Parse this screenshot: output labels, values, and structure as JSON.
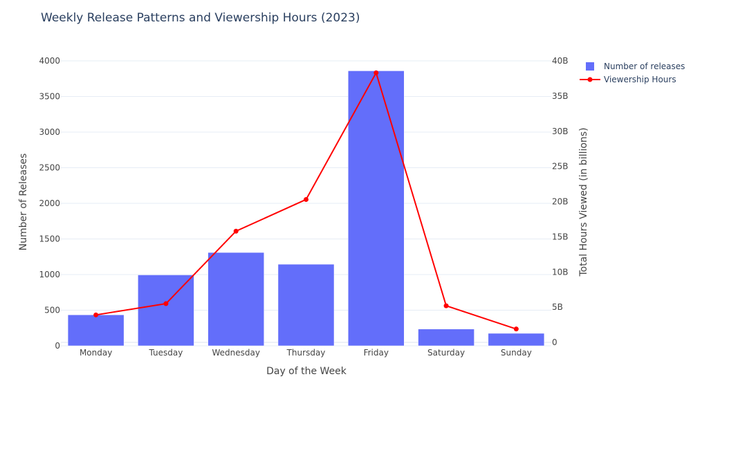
{
  "chart_data": {
    "type": "bar",
    "title": "Weekly Release Patterns and Viewership Hours (2023)",
    "xlabel": "Day of the Week",
    "ylabel": "Number of Releases",
    "y2label": "Total Hours Viewed (in billions)",
    "categories": [
      "Monday",
      "Tuesday",
      "Wednesday",
      "Thursday",
      "Friday",
      "Saturday",
      "Sunday"
    ],
    "ylim": [
      0,
      4000
    ],
    "y2lim": [
      0,
      40
    ],
    "yticks": [
      "0",
      "500",
      "1000",
      "1500",
      "2000",
      "2500",
      "3000",
      "3500",
      "4000"
    ],
    "y2ticks": [
      "0",
      "5B",
      "10B",
      "15B",
      "20B",
      "25B",
      "30B",
      "35B",
      "40B"
    ],
    "series": [
      {
        "name": "Number of releases",
        "type": "bar",
        "axis": "y",
        "color": "#636efa",
        "values": [
          435,
          995,
          1310,
          1145,
          3860,
          235,
          175
        ]
      },
      {
        "name": "Viewership Hours",
        "type": "line",
        "axis": "y2",
        "color": "#ff0000",
        "values": [
          3.9,
          5.5,
          15.8,
          20.3,
          38.3,
          5.2,
          1.9
        ]
      }
    ],
    "legend_position": "top-right",
    "grid": true
  }
}
